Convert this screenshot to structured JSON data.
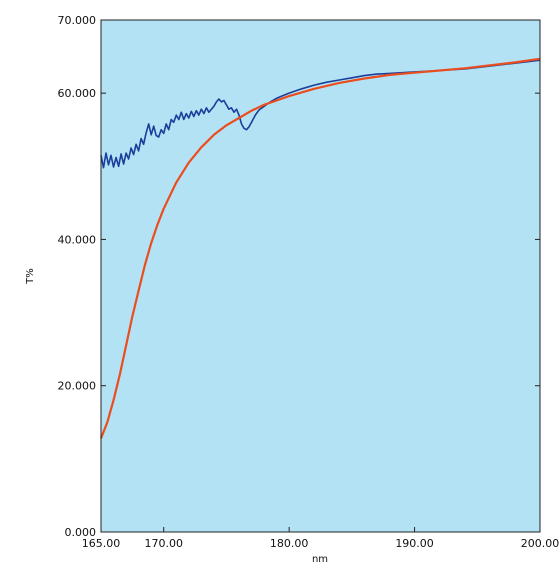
{
  "chart_data": {
    "type": "line",
    "title": "",
    "xlabel": "nm",
    "ylabel": "T%",
    "xlim": [
      165,
      200
    ],
    "ylim": [
      0,
      70
    ],
    "x_ticks": [
      165,
      170,
      180,
      190,
      200
    ],
    "x_tick_labels": [
      "165.00",
      "170.00",
      "180.00",
      "190.00",
      "200.00"
    ],
    "y_ticks": [
      0,
      20,
      40,
      60,
      70
    ],
    "y_tick_labels": [
      "0.000",
      "20.000",
      "40.000",
      "60.000",
      "70.000"
    ],
    "grid": false,
    "plot_background": "#b4e2f5",
    "series": [
      {
        "name": "",
        "color": "#1a3f9a",
        "x": [
          165.0,
          165.2,
          165.4,
          165.6,
          165.8,
          166.0,
          166.2,
          166.4,
          166.6,
          166.8,
          167.0,
          167.2,
          167.4,
          167.6,
          167.8,
          168.0,
          168.2,
          168.4,
          168.6,
          168.8,
          169.0,
          169.2,
          169.4,
          169.6,
          169.8,
          170.0,
          170.2,
          170.4,
          170.6,
          170.8,
          171.0,
          171.2,
          171.4,
          171.6,
          171.8,
          172.0,
          172.2,
          172.4,
          172.6,
          172.8,
          173.0,
          173.2,
          173.4,
          173.6,
          173.8,
          174.0,
          174.2,
          174.4,
          174.6,
          174.8,
          175.0,
          175.2,
          175.4,
          175.6,
          175.8,
          176.0,
          176.2,
          176.4,
          176.6,
          176.8,
          177.0,
          177.3,
          177.6,
          178.0,
          178.5,
          179.0,
          180.0,
          181.0,
          182.0,
          183.0,
          184.0,
          185.0,
          186.0,
          187.0,
          188.0,
          189.0,
          190.0,
          192.0,
          194.0,
          196.0,
          198.0,
          200.0
        ],
        "y": [
          51.5,
          49.8,
          51.8,
          50.2,
          51.5,
          49.9,
          51.2,
          50.0,
          51.7,
          50.3,
          51.8,
          51.0,
          52.5,
          51.6,
          53.0,
          52.1,
          53.8,
          53.0,
          54.6,
          55.8,
          54.3,
          55.5,
          54.2,
          54.0,
          55.0,
          54.5,
          55.8,
          55.0,
          56.4,
          56.0,
          57.0,
          56.4,
          57.4,
          56.4,
          57.2,
          56.6,
          57.5,
          56.8,
          57.6,
          57.0,
          57.8,
          57.2,
          58.0,
          57.4,
          57.8,
          58.2,
          58.8,
          59.2,
          58.8,
          59.0,
          58.4,
          57.8,
          58.0,
          57.4,
          57.8,
          57.0,
          55.8,
          55.2,
          55.0,
          55.4,
          56.0,
          57.0,
          57.7,
          58.2,
          58.8,
          59.3,
          60.0,
          60.6,
          61.1,
          61.5,
          61.8,
          62.1,
          62.4,
          62.6,
          62.7,
          62.8,
          62.9,
          63.1,
          63.3,
          63.7,
          64.1,
          64.5
        ]
      },
      {
        "name": "",
        "color": "#ea4e1e",
        "x": [
          165.0,
          165.5,
          166.0,
          166.5,
          167.0,
          167.5,
          168.0,
          168.5,
          169.0,
          169.5,
          170.0,
          171.0,
          172.0,
          173.0,
          174.0,
          175.0,
          176.0,
          177.0,
          178.0,
          179.0,
          180.0,
          182.0,
          184.0,
          186.0,
          188.0,
          190.0,
          192.0,
          194.0,
          196.0,
          198.0,
          200.0
        ],
        "y": [
          12.8,
          15.0,
          18.0,
          21.5,
          25.5,
          29.5,
          33.0,
          36.5,
          39.5,
          42.0,
          44.2,
          47.8,
          50.5,
          52.6,
          54.3,
          55.6,
          56.6,
          57.6,
          58.4,
          59.0,
          59.6,
          60.6,
          61.4,
          62.0,
          62.5,
          62.8,
          63.1,
          63.4,
          63.8,
          64.2,
          64.7
        ]
      }
    ]
  }
}
